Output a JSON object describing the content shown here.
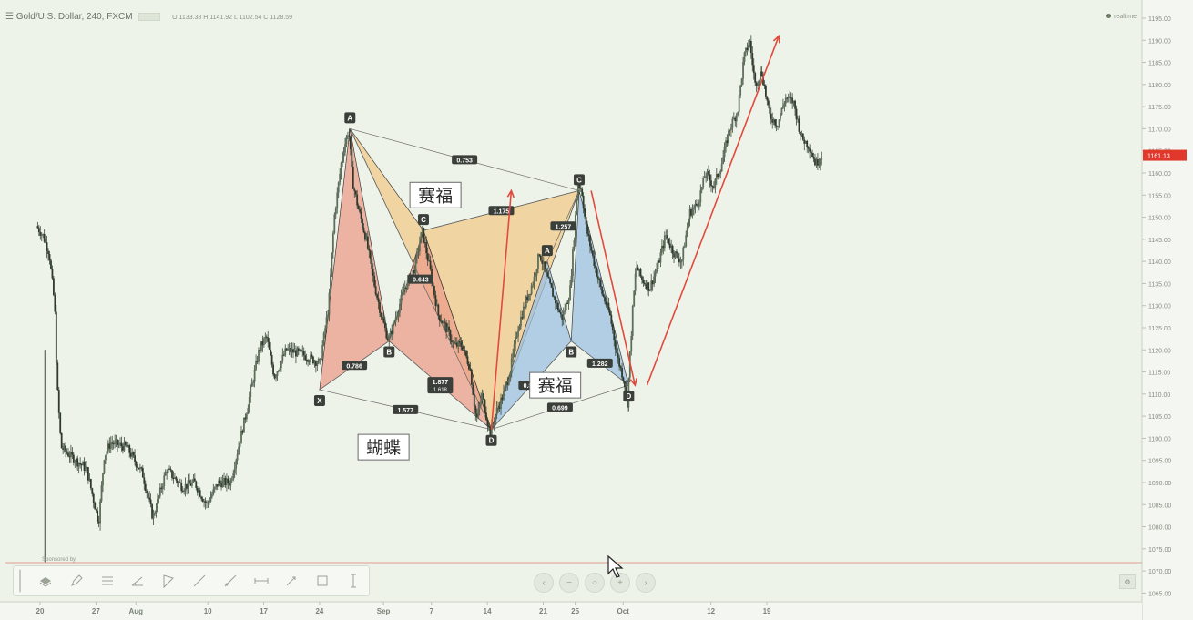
{
  "header": {
    "symbol": "Gold/U.S. Dollar, 240, FXCM",
    "ohlc": "O 1133.38 H 1141.92 L 1102.54 C 1128.59"
  },
  "corner_label": "realtime",
  "price_tag": "1161.13",
  "sponsor_text": "Sponsored by",
  "toolbar": {
    "icons": [
      "layers-icon",
      "pencil-icon",
      "lines-icon",
      "angle-icon",
      "triangle-icon",
      "trend-line-icon",
      "ray-icon",
      "horizontal-line-icon",
      "arrow-line-icon",
      "rectangle-icon",
      "vertical-line-icon"
    ]
  },
  "nav_buttons": [
    "‹",
    "−",
    "○",
    "+",
    "›"
  ],
  "settings_glyph": "⚙",
  "colors": {
    "background": "#eef3ea",
    "candle": "#3d4a3b",
    "butterfly_fill": "#ec9e8a",
    "cypher_fill": "#f0c98a",
    "cypher2_fill": "#9ec2e2",
    "arrow": "#e14a3c",
    "grid_line": "#e08070"
  },
  "chart_data": {
    "type": "candlestick",
    "ylim": [
      1061,
      1196
    ],
    "y_ticks": [
      "1195.00",
      "1190.00",
      "1185.00",
      "1180.00",
      "1175.00",
      "1170.00",
      "1165.00",
      "1160.00",
      "1155.00",
      "1150.00",
      "1145.00",
      "1140.00",
      "1135.00",
      "1130.00",
      "1125.00",
      "1120.00",
      "1115.00",
      "1110.00",
      "1105.00",
      "1100.00",
      "1095.00",
      "1090.00",
      "1085.00",
      "1080.00",
      "1075.00",
      "1070.00",
      "1065.00"
    ],
    "x_ticks": [
      {
        "label": "20",
        "day": 0
      },
      {
        "label": "27",
        "day": 7
      },
      {
        "label": "Aug",
        "day": 12
      },
      {
        "label": "10",
        "day": 21
      },
      {
        "label": "17",
        "day": 28
      },
      {
        "label": "24",
        "day": 35
      },
      {
        "label": "Sep",
        "day": 43
      },
      {
        "label": "7",
        "day": 49
      },
      {
        "label": "14",
        "day": 56
      },
      {
        "label": "21",
        "day": 63
      },
      {
        "label": "25",
        "day": 67
      },
      {
        "label": "Oct",
        "day": 73
      },
      {
        "label": "12",
        "day": 84
      },
      {
        "label": "19",
        "day": 91
      }
    ],
    "price_path": [
      [
        -0.3,
        1148
      ],
      [
        0.5,
        1146
      ],
      [
        1.3,
        1142
      ],
      [
        2,
        1130
      ],
      [
        2.3,
        1112
      ],
      [
        2.8,
        1098
      ],
      [
        4,
        1096
      ],
      [
        6,
        1093
      ],
      [
        7.5,
        1081
      ],
      [
        8.2,
        1096
      ],
      [
        9,
        1099
      ],
      [
        11,
        1098
      ],
      [
        13,
        1092
      ],
      [
        14.3,
        1082
      ],
      [
        16,
        1093
      ],
      [
        18,
        1089
      ],
      [
        19.5,
        1090
      ],
      [
        21,
        1085
      ],
      [
        22.5,
        1090
      ],
      [
        24,
        1090
      ],
      [
        26,
        1106
      ],
      [
        27.6,
        1120
      ],
      [
        28.5,
        1123
      ],
      [
        29.5,
        1114
      ],
      [
        31,
        1120
      ],
      [
        33,
        1119
      ],
      [
        35.2,
        1117
      ],
      [
        36.3,
        1130
      ],
      [
        37,
        1150
      ],
      [
        38,
        1164
      ],
      [
        38.8,
        1170
      ],
      [
        39.3,
        1158
      ],
      [
        40,
        1152
      ],
      [
        41,
        1145
      ],
      [
        42,
        1135
      ],
      [
        43,
        1127
      ],
      [
        43.8,
        1122
      ],
      [
        44.8,
        1128
      ],
      [
        45.8,
        1134
      ],
      [
        47,
        1138
      ],
      [
        48,
        1147
      ],
      [
        49,
        1138
      ],
      [
        50,
        1128
      ],
      [
        51,
        1125
      ],
      [
        52,
        1121
      ],
      [
        53,
        1121
      ],
      [
        54,
        1116
      ],
      [
        54.8,
        1104
      ],
      [
        55.5,
        1110
      ],
      [
        56.5,
        1101
      ],
      [
        57.3,
        1106
      ],
      [
        58.2,
        1110
      ],
      [
        59,
        1115
      ],
      [
        60,
        1125
      ],
      [
        61,
        1131
      ],
      [
        62,
        1136
      ],
      [
        62.7,
        1142
      ],
      [
        63.5,
        1137
      ],
      [
        64.5,
        1132
      ],
      [
        65.5,
        1127
      ],
      [
        66.5,
        1133
      ],
      [
        67,
        1145
      ],
      [
        67.5,
        1158
      ],
      [
        68,
        1156
      ],
      [
        68.5,
        1148
      ],
      [
        69.5,
        1140
      ],
      [
        70.5,
        1133
      ],
      [
        71.5,
        1128
      ],
      [
        72.5,
        1118
      ],
      [
        73.3,
        1113
      ],
      [
        73.7,
        1108
      ],
      [
        74,
        1118
      ],
      [
        74.4,
        1130
      ],
      [
        74.8,
        1139
      ],
      [
        75.5,
        1136
      ],
      [
        76.5,
        1134
      ],
      [
        77.5,
        1139
      ],
      [
        78.5,
        1146
      ],
      [
        79.5,
        1142
      ],
      [
        80.5,
        1140
      ],
      [
        81.5,
        1151
      ],
      [
        82.5,
        1153
      ],
      [
        83.5,
        1160
      ],
      [
        84.5,
        1157
      ],
      [
        85.5,
        1162
      ],
      [
        86.5,
        1170
      ],
      [
        87.5,
        1174
      ],
      [
        88.3,
        1186
      ],
      [
        89,
        1190
      ],
      [
        89.7,
        1180
      ],
      [
        90.5,
        1183
      ],
      [
        91.5,
        1173
      ],
      [
        92.5,
        1171
      ],
      [
        93.5,
        1177
      ],
      [
        94.5,
        1176
      ],
      [
        95.5,
        1168
      ],
      [
        96.5,
        1166
      ],
      [
        97.3,
        1162
      ],
      [
        98,
        1164
      ]
    ],
    "patterns": [
      {
        "name": "蝴蝶",
        "type": "butterfly",
        "points": [
          {
            "label": "X",
            "day": 35.0,
            "price": 1111
          },
          {
            "label": "A",
            "day": 38.8,
            "price": 1170
          },
          {
            "label": "B",
            "day": 43.7,
            "price": 1122
          },
          {
            "label": "C",
            "day": 48.0,
            "price": 1147
          },
          {
            "label": "D",
            "day": 56.5,
            "price": 1102
          }
        ],
        "ratios": [
          {
            "text": "0.786",
            "between": [
              "X",
              "B"
            ]
          },
          {
            "text": "1.577",
            "between": [
              "X",
              "D"
            ]
          },
          {
            "text": "1.877",
            "between": [
              "B",
              "D"
            ],
            "sub": "1.618"
          }
        ]
      },
      {
        "name": "赛福",
        "type": "cypher",
        "points": [
          {
            "label": "X",
            "day": 38.8,
            "price": 1170
          },
          {
            "label": "A",
            "day": 48.0,
            "price": 1147
          },
          {
            "label": "B",
            "day": 56.5,
            "price": 1102
          },
          {
            "label": "C",
            "day": 67.5,
            "price": 1156
          }
        ],
        "ratios": [
          {
            "text": "0.643",
            "between": [
              "X",
              "B"
            ]
          },
          {
            "text": "0.753",
            "between": [
              "X",
              "C"
            ]
          },
          {
            "text": "1.175",
            "between": [
              "A",
              "C"
            ]
          }
        ]
      },
      {
        "name": "赛福",
        "type": "cypher",
        "points": [
          {
            "label": "X",
            "day": 56.5,
            "price": 1102
          },
          {
            "label": "A",
            "day": 63.5,
            "price": 1140
          },
          {
            "label": "B",
            "day": 66.5,
            "price": 1122
          },
          {
            "label": "C",
            "day": 67.5,
            "price": 1156
          },
          {
            "label": "D",
            "day": 73.7,
            "price": 1112
          }
        ],
        "ratios": [
          {
            "text": "1.257",
            "between": [
              "A",
              "C"
            ]
          },
          {
            "text": "0.863",
            "between": [
              "X",
              "B"
            ]
          },
          {
            "text": "0.699",
            "between": [
              "X",
              "D"
            ]
          },
          {
            "text": "1.282",
            "between": [
              "B",
              "D"
            ]
          }
        ]
      }
    ],
    "arrows": [
      {
        "from": {
          "day": 56.5,
          "price": 1102
        },
        "to": {
          "day": 59.0,
          "price": 1156
        }
      },
      {
        "from": {
          "day": 69.0,
          "price": 1156
        },
        "to": {
          "day": 74.5,
          "price": 1112
        }
      },
      {
        "from": {
          "day": 76.0,
          "price": 1112
        },
        "to": {
          "day": 92.5,
          "price": 1191
        }
      }
    ]
  }
}
